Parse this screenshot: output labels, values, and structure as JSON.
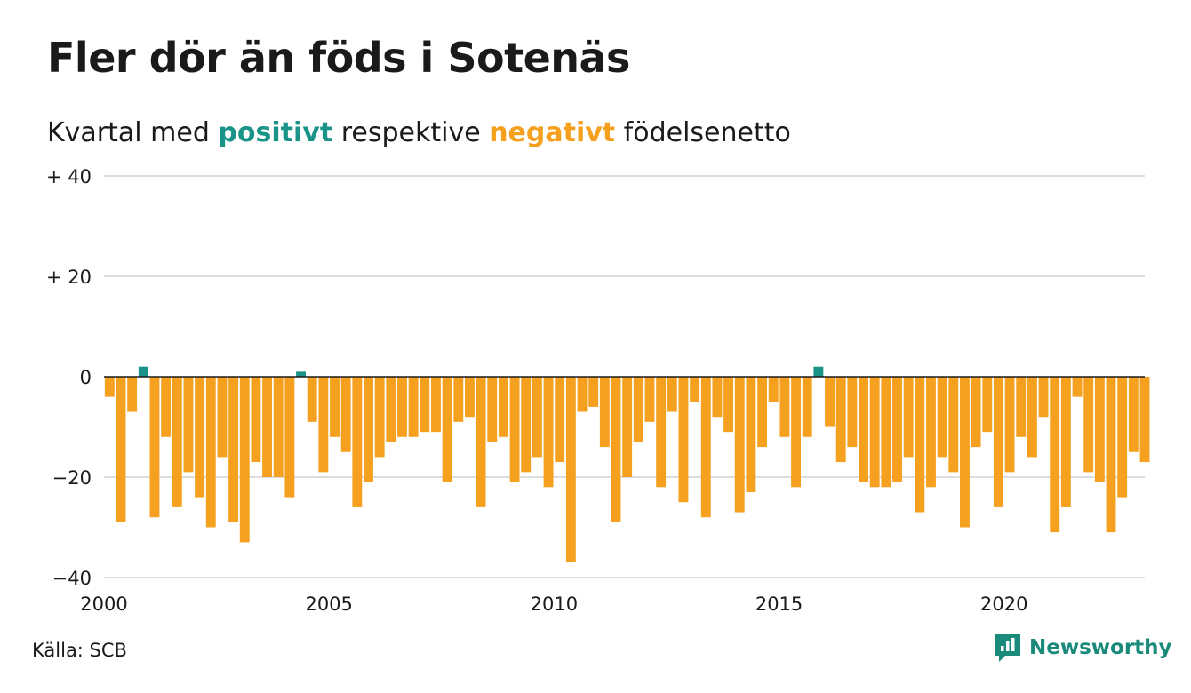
{
  "header": {
    "title": "Fler dör än föds i Sotenäs",
    "subtitle_prefix": "Kvartal med ",
    "subtitle_positive": "positivt",
    "subtitle_middle": " respektive ",
    "subtitle_negative": "negativt",
    "subtitle_suffix": " födelsenetto"
  },
  "footer": {
    "source": "Källa: SCB",
    "brand": "Newsworthy",
    "brand_icon": "newsworthy-logo-icon"
  },
  "colors": {
    "positive": "#1a9488",
    "negative": "#f5a11f",
    "text": "#1a1a1a",
    "grid": "#dddddd",
    "zero_line": "#1a1a1a",
    "brand": "#1a8a7a"
  },
  "chart_data": {
    "type": "bar",
    "title": "Fler dör än föds i Sotenäs",
    "subtitle": "Kvartal med positivt respektive negativt födelsenetto",
    "xlabel": "",
    "ylabel": "",
    "x_start": "2000 Q1",
    "x_end": "2023 Q1",
    "ylim": [
      -40,
      40
    ],
    "grid": true,
    "y_ticks": [
      40,
      20,
      0,
      -20,
      -40
    ],
    "y_tick_labels": [
      "+ 40",
      "+ 20",
      "0",
      "−20",
      "−40"
    ],
    "x_ticks": [
      2000,
      2005,
      2010,
      2015,
      2020
    ],
    "x_tick_labels": [
      "2000",
      "2005",
      "2010",
      "2015",
      "2020"
    ],
    "quarters": [
      "2000 Q1",
      "2000 Q2",
      "2000 Q3",
      "2000 Q4",
      "2001 Q1",
      "2001 Q2",
      "2001 Q3",
      "2001 Q4",
      "2002 Q1",
      "2002 Q2",
      "2002 Q3",
      "2002 Q4",
      "2003 Q1",
      "2003 Q2",
      "2003 Q3",
      "2003 Q4",
      "2004 Q1",
      "2004 Q2",
      "2004 Q3",
      "2004 Q4",
      "2005 Q1",
      "2005 Q2",
      "2005 Q3",
      "2005 Q4",
      "2006 Q1",
      "2006 Q2",
      "2006 Q3",
      "2006 Q4",
      "2007 Q1",
      "2007 Q2",
      "2007 Q3",
      "2007 Q4",
      "2008 Q1",
      "2008 Q2",
      "2008 Q3",
      "2008 Q4",
      "2009 Q1",
      "2009 Q2",
      "2009 Q3",
      "2009 Q4",
      "2010 Q1",
      "2010 Q2",
      "2010 Q3",
      "2010 Q4",
      "2011 Q1",
      "2011 Q2",
      "2011 Q3",
      "2011 Q4",
      "2012 Q1",
      "2012 Q2",
      "2012 Q3",
      "2012 Q4",
      "2013 Q1",
      "2013 Q2",
      "2013 Q3",
      "2013 Q4",
      "2014 Q1",
      "2014 Q2",
      "2014 Q3",
      "2014 Q4",
      "2015 Q1",
      "2015 Q2",
      "2015 Q3",
      "2015 Q4",
      "2016 Q1",
      "2016 Q2",
      "2016 Q3",
      "2016 Q4",
      "2017 Q1",
      "2017 Q2",
      "2017 Q3",
      "2017 Q4",
      "2018 Q1",
      "2018 Q2",
      "2018 Q3",
      "2018 Q4",
      "2019 Q1",
      "2019 Q2",
      "2019 Q3",
      "2019 Q4",
      "2020 Q1",
      "2020 Q2",
      "2020 Q3",
      "2020 Q4",
      "2021 Q1",
      "2021 Q2",
      "2021 Q3",
      "2021 Q4",
      "2022 Q1",
      "2022 Q2",
      "2022 Q3",
      "2022 Q4",
      "2023 Q1"
    ],
    "values": [
      -4,
      -29,
      -7,
      2,
      -28,
      -12,
      -26,
      -19,
      -24,
      -30,
      -16,
      -29,
      -33,
      -17,
      -20,
      -20,
      -24,
      1,
      -9,
      -19,
      -12,
      -15,
      -26,
      -21,
      -16,
      -13,
      -12,
      -12,
      -11,
      -11,
      -21,
      -9,
      -8,
      -26,
      -13,
      -12,
      -21,
      -19,
      -16,
      -22,
      -17,
      -37,
      -7,
      -6,
      -14,
      -29,
      -20,
      -13,
      -9,
      -22,
      -7,
      -25,
      -5,
      -28,
      -8,
      -11,
      -27,
      -23,
      -14,
      -5,
      -12,
      -22,
      -12,
      2,
      -10,
      -17,
      -14,
      -21,
      -22,
      -22,
      -21,
      -16,
      -27,
      -22,
      -16,
      -19,
      -30,
      -14,
      -11,
      -26,
      -19,
      -12,
      -16,
      -8,
      -31,
      -26,
      -4,
      -19,
      -21,
      -31,
      -24,
      -15,
      -17
    ]
  }
}
